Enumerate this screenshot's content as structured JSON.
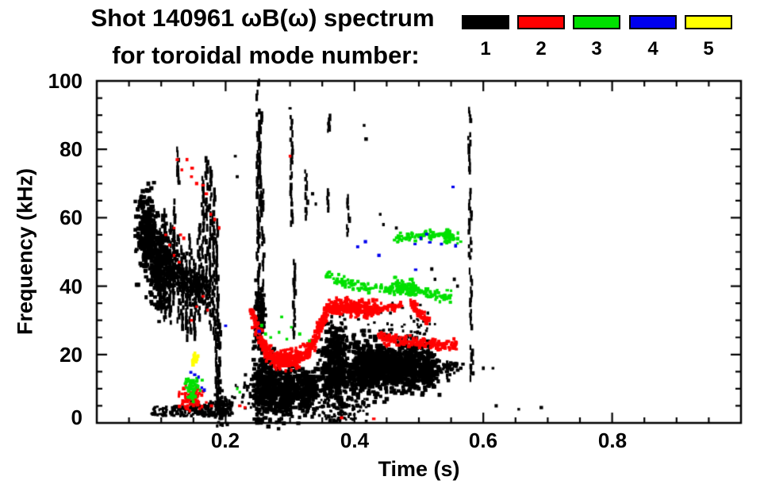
{
  "title": {
    "line1": "Shot 140961 ωB(ω) spectrum",
    "line2": "for toroidal mode number:"
  },
  "legend": {
    "items": [
      {
        "label": "1",
        "color": "#000000"
      },
      {
        "label": "2",
        "color": "#ff0000"
      },
      {
        "label": "3",
        "color": "#00e000"
      },
      {
        "label": "4",
        "color": "#0000ee"
      },
      {
        "label": "5",
        "color": "#ffff00"
      }
    ]
  },
  "chart_data": {
    "type": "scatter",
    "title": "Shot 140961 ωB(ω) spectrum for toroidal mode number: 1 2 3 4 5",
    "xlabel": "Time (s)",
    "ylabel": "Frequency (kHz)",
    "xlim": [
      0,
      1.0
    ],
    "ylim": [
      0,
      100
    ],
    "x_major_ticks": [
      0.2,
      0.4,
      0.6,
      0.8
    ],
    "x_minor_step": 0.05,
    "x_tick_labels": [
      "0.2",
      "0.4",
      "0.6",
      "0.8"
    ],
    "y_major_ticks": [
      0,
      20,
      40,
      60,
      80,
      100
    ],
    "y_minor_step": 5,
    "y_tick_labels": [
      "100",
      "80",
      "60",
      "40",
      "20",
      "0"
    ],
    "grid": false,
    "legend_position": "top-right",
    "modes": [
      {
        "n": 1,
        "color": "#000000"
      },
      {
        "n": 2,
        "color": "#ff0000"
      },
      {
        "n": 3,
        "color": "#00e000"
      },
      {
        "n": 4,
        "color": "#0000ee"
      },
      {
        "n": 5,
        "color": "#ffff00"
      }
    ],
    "clusters": [
      {
        "mode": 1,
        "kind": "blob",
        "t": 0.078,
        "f": 56,
        "st": 0.007,
        "sf": 6,
        "n": 260,
        "s": 4
      },
      {
        "mode": 1,
        "kind": "blob",
        "t": 0.1,
        "f": 45,
        "st": 0.009,
        "sf": 6,
        "n": 240,
        "s": 4
      },
      {
        "mode": 1,
        "kind": "path",
        "pts": [
          [
            0.067,
            64
          ],
          [
            0.078,
            56
          ],
          [
            0.09,
            51
          ],
          [
            0.103,
            47
          ],
          [
            0.118,
            44
          ],
          [
            0.135,
            42
          ],
          [
            0.155,
            40
          ],
          [
            0.175,
            38
          ]
        ],
        "th": 5,
        "n": 420,
        "s": 3
      },
      {
        "mode": 1,
        "kind": "band",
        "t0": 0.085,
        "t1": 0.145,
        "f0": 2,
        "f1": 5,
        "n": 90,
        "s": 2.5
      },
      {
        "mode": 1,
        "kind": "band",
        "t0": 0.145,
        "t1": 0.21,
        "f0": 2,
        "f1": 6.5,
        "n": 130,
        "s": 3
      },
      {
        "mode": 1,
        "kind": "blob",
        "t": 0.193,
        "f": 4,
        "st": 0.005,
        "sf": 2.5,
        "n": 70,
        "s": 3
      },
      {
        "mode": 1,
        "kind": "band",
        "t0": 0.21,
        "t1": 0.245,
        "f0": 4,
        "f1": 12,
        "n": 22,
        "s": 2.5
      },
      {
        "mode": 1,
        "kind": "vline",
        "t": 0.099,
        "f0": 33,
        "f1": 57,
        "w": 1.5
      },
      {
        "mode": 1,
        "kind": "vline",
        "t": 0.106,
        "f0": 30,
        "f1": 62,
        "w": 1.5
      },
      {
        "mode": 1,
        "kind": "vline",
        "t": 0.113,
        "f0": 28,
        "f1": 58,
        "w": 1.5
      },
      {
        "mode": 1,
        "kind": "vline",
        "t": 0.119,
        "f0": 35,
        "f1": 65,
        "w": 1.5
      },
      {
        "mode": 1,
        "kind": "vline",
        "t": 0.126,
        "f0": 30,
        "f1": 55,
        "w": 1.5
      },
      {
        "mode": 1,
        "kind": "vline",
        "t": 0.1265,
        "f0": 70,
        "f1": 80,
        "w": 1.5
      },
      {
        "mode": 1,
        "kind": "vline",
        "t": 0.132,
        "f0": 28,
        "f1": 52,
        "w": 2
      },
      {
        "mode": 1,
        "kind": "vline",
        "t": 0.139,
        "f0": 25,
        "f1": 50,
        "w": 1.5
      },
      {
        "mode": 1,
        "kind": "vline",
        "t": 0.145,
        "f0": 27,
        "f1": 55,
        "w": 1.5
      },
      {
        "mode": 1,
        "kind": "vline",
        "t": 0.152,
        "f0": 25,
        "f1": 48,
        "w": 1.5
      },
      {
        "mode": 1,
        "kind": "vline",
        "t": 0.158,
        "f0": 30,
        "f1": 58,
        "w": 1.5
      },
      {
        "mode": 1,
        "kind": "vline",
        "t": 0.164,
        "f0": 35,
        "f1": 72,
        "w": 1.5
      },
      {
        "mode": 1,
        "kind": "vline",
        "t": 0.17,
        "f0": 32,
        "f1": 78,
        "w": 1.5
      },
      {
        "mode": 1,
        "kind": "vline",
        "t": 0.176,
        "f0": 28,
        "f1": 75,
        "w": 1.5
      },
      {
        "mode": 1,
        "kind": "vline",
        "t": 0.181,
        "f0": 25,
        "f1": 68,
        "w": 1.5
      },
      {
        "mode": 1,
        "kind": "vline",
        "t": 0.186,
        "f0": 5,
        "f1": 60,
        "w": 1.5
      },
      {
        "mode": 1,
        "kind": "vline",
        "t": 0.19,
        "f0": 2,
        "f1": 30,
        "w": 1.5
      },
      {
        "mode": 1,
        "kind": "vline",
        "t": 0.25,
        "f0": 25,
        "f1": 100,
        "w": 2
      },
      {
        "mode": 1,
        "kind": "vline",
        "t": 0.2535,
        "f0": 55,
        "f1": 92,
        "w": 1.5
      },
      {
        "mode": 1,
        "kind": "vline",
        "t": 0.257,
        "f0": 28,
        "f1": 68,
        "w": 1.5
      },
      {
        "mode": 1,
        "kind": "blob",
        "t": 0.252,
        "f": 30,
        "st": 0.004,
        "sf": 5,
        "n": 120,
        "s": 4
      },
      {
        "mode": 1,
        "kind": "blob",
        "t": 0.262,
        "f": 10,
        "st": 0.012,
        "sf": 4.5,
        "n": 330,
        "s": 4
      },
      {
        "mode": 1,
        "kind": "blob",
        "t": 0.296,
        "f": 9,
        "st": 0.012,
        "sf": 3.5,
        "n": 280,
        "s": 4
      },
      {
        "mode": 1,
        "kind": "blob",
        "t": 0.328,
        "f": 9.5,
        "st": 0.008,
        "sf": 3,
        "n": 170,
        "s": 4
      },
      {
        "mode": 1,
        "kind": "vline",
        "t": 0.302,
        "f0": 55,
        "f1": 90,
        "w": 1.5
      },
      {
        "mode": 1,
        "kind": "vline",
        "t": 0.306,
        "f0": 25,
        "f1": 50,
        "w": 1.5
      },
      {
        "mode": 1,
        "kind": "vline",
        "t": 0.325,
        "f0": 60,
        "f1": 74,
        "w": 1.5
      },
      {
        "mode": 1,
        "kind": "vline",
        "t": 0.359,
        "f0": 60,
        "f1": 68,
        "w": 1.5
      },
      {
        "mode": 1,
        "kind": "vline",
        "t": 0.36,
        "f0": 84,
        "f1": 90,
        "w": 1.5
      },
      {
        "mode": 1,
        "kind": "vline",
        "t": 0.39,
        "f0": 55,
        "f1": 67,
        "w": 1.5
      },
      {
        "mode": 1,
        "kind": "blob",
        "t": 0.371,
        "f": 15,
        "st": 0.012,
        "sf": 5.5,
        "n": 420,
        "s": 4
      },
      {
        "mode": 1,
        "kind": "blob",
        "t": 0.371,
        "f": 24,
        "st": 0.008,
        "sf": 3,
        "n": 110,
        "s": 3
      },
      {
        "mode": 1,
        "kind": "blob",
        "t": 0.412,
        "f": 16,
        "st": 0.01,
        "sf": 4.2,
        "n": 300,
        "s": 4
      },
      {
        "mode": 1,
        "kind": "blob",
        "t": 0.438,
        "f": 16,
        "st": 0.011,
        "sf": 3.8,
        "n": 300,
        "s": 4
      },
      {
        "mode": 1,
        "kind": "blob",
        "t": 0.465,
        "f": 16,
        "st": 0.007,
        "sf": 2.8,
        "n": 190,
        "s": 4
      },
      {
        "mode": 1,
        "kind": "blob",
        "t": 0.487,
        "f": 16.5,
        "st": 0.009,
        "sf": 3.2,
        "n": 250,
        "s": 4
      },
      {
        "mode": 1,
        "kind": "blob",
        "t": 0.513,
        "f": 16,
        "st": 0.008,
        "sf": 3,
        "n": 220,
        "s": 4
      },
      {
        "mode": 1,
        "kind": "blob",
        "t": 0.545,
        "f": 16,
        "st": 0.009,
        "sf": 1.5,
        "n": 40,
        "s": 3
      },
      {
        "mode": 1,
        "kind": "band",
        "t0": 0.345,
        "t1": 0.42,
        "f0": 0.5,
        "f1": 7,
        "n": 70,
        "s": 2.5
      },
      {
        "mode": 1,
        "kind": "band",
        "t0": 0.42,
        "t1": 0.53,
        "f0": 25,
        "f1": 30,
        "n": 40,
        "s": 2.5
      },
      {
        "mode": 1,
        "kind": "band",
        "t0": 0.36,
        "t1": 0.52,
        "f0": 30,
        "f1": 36,
        "n": 18,
        "s": 2.5
      },
      {
        "mode": 1,
        "kind": "vline",
        "t": 0.578,
        "f0": 86,
        "f1": 92,
        "w": 1.5
      },
      {
        "mode": 1,
        "kind": "vline",
        "t": 0.5785,
        "f0": 72,
        "f1": 85,
        "w": 2
      },
      {
        "mode": 1,
        "kind": "vline",
        "t": 0.579,
        "f0": 48,
        "f1": 68,
        "w": 2
      },
      {
        "mode": 1,
        "kind": "vline",
        "t": 0.5805,
        "f0": 28,
        "f1": 45,
        "w": 1.5
      },
      {
        "mode": 1,
        "kind": "vline",
        "t": 0.582,
        "f0": 12,
        "f1": 22,
        "w": 2
      },
      {
        "mode": 1,
        "kind": "dots",
        "s": 3,
        "pts": [
          [
            0.215,
            78
          ],
          [
            0.218,
            72
          ],
          [
            0.36,
            87.5
          ],
          [
            0.415,
            87
          ],
          [
            0.418,
            83
          ],
          [
            0.44,
            61
          ],
          [
            0.445,
            58
          ],
          [
            0.465,
            57
          ],
          [
            0.52,
            45
          ],
          [
            0.525,
            42
          ],
          [
            0.555,
            42
          ],
          [
            0.56,
            40
          ],
          [
            0.615,
            16
          ],
          [
            0.62,
            5
          ],
          [
            0.655,
            4
          ],
          [
            0.69,
            4.5
          ],
          [
            0.3,
            92
          ],
          [
            0.335,
            67
          ],
          [
            0.34,
            64
          ],
          [
            0.558,
            16.5
          ],
          [
            0.565,
            16
          ],
          [
            0.6,
            16
          ]
        ]
      },
      {
        "mode": 2,
        "kind": "path",
        "pts": [
          [
            0.24,
            33
          ],
          [
            0.25,
            27
          ],
          [
            0.258,
            23
          ],
          [
            0.268,
            20
          ],
          [
            0.278,
            18.8
          ],
          [
            0.295,
            18.3
          ],
          [
            0.31,
            18.8
          ],
          [
            0.322,
            20
          ],
          [
            0.335,
            23
          ],
          [
            0.347,
            28
          ],
          [
            0.356,
            32
          ]
        ],
        "th": 2.4,
        "n": 520,
        "s": 3
      },
      {
        "mode": 2,
        "kind": "path",
        "pts": [
          [
            0.356,
            33.5
          ],
          [
            0.385,
            34
          ],
          [
            0.415,
            33.5
          ],
          [
            0.437,
            33
          ]
        ],
        "th": 2.2,
        "n": 330,
        "s": 3
      },
      {
        "mode": 2,
        "kind": "path",
        "pts": [
          [
            0.437,
            33.2
          ],
          [
            0.455,
            33.8
          ],
          [
            0.475,
            34.4
          ]
        ],
        "th": 1.2,
        "n": 40,
        "s": 3
      },
      {
        "mode": 2,
        "kind": "path",
        "pts": [
          [
            0.488,
            35
          ],
          [
            0.503,
            31.5
          ],
          [
            0.515,
            29.5
          ]
        ],
        "th": 1.6,
        "n": 70,
        "s": 3
      },
      {
        "mode": 2,
        "kind": "path",
        "pts": [
          [
            0.437,
            25
          ],
          [
            0.465,
            24
          ],
          [
            0.495,
            23.3
          ],
          [
            0.525,
            23
          ],
          [
            0.558,
            22.4
          ]
        ],
        "th": 1.6,
        "n": 170,
        "s": 3
      },
      {
        "mode": 2,
        "kind": "blob",
        "t": 0.145,
        "f": 7.5,
        "st": 0.009,
        "sf": 1.8,
        "n": 70,
        "s": 3
      },
      {
        "mode": 2,
        "kind": "dots",
        "s": 3,
        "pts": [
          [
            0.125,
            77
          ],
          [
            0.132,
            74
          ],
          [
            0.14,
            77
          ],
          [
            0.148,
            74.5
          ],
          [
            0.147,
            72
          ],
          [
            0.155,
            70
          ],
          [
            0.165,
            69.5
          ],
          [
            0.17,
            67
          ],
          [
            0.177,
            61
          ],
          [
            0.183,
            59.5
          ],
          [
            0.19,
            57
          ],
          [
            0.12,
            57
          ],
          [
            0.13,
            55
          ],
          [
            0.135,
            54
          ],
          [
            0.107,
            55
          ],
          [
            0.113,
            52
          ],
          [
            0.12,
            49
          ],
          [
            0.128,
            47
          ],
          [
            0.3,
            78
          ]
        ]
      },
      {
        "mode": 2,
        "kind": "dots",
        "s": 3,
        "pts": [
          [
            0.128,
            9
          ],
          [
            0.133,
            5.5
          ],
          [
            0.17,
            6
          ],
          [
            0.178,
            5
          ],
          [
            0.222,
            5
          ],
          [
            0.23,
            4.5
          ],
          [
            0.38,
            1.5
          ],
          [
            0.43,
            1.2
          ],
          [
            0.155,
            34
          ],
          [
            0.165,
            37
          ],
          [
            0.172,
            33
          ],
          [
            0.147,
            30
          ]
        ]
      },
      {
        "mode": 3,
        "kind": "blob",
        "t": 0.148,
        "f": 10,
        "st": 0.006,
        "sf": 2,
        "n": 55,
        "s": 3
      },
      {
        "mode": 3,
        "kind": "dots",
        "s": 3,
        "pts": [
          [
            0.256,
            28.5
          ],
          [
            0.262,
            26
          ],
          [
            0.27,
            25
          ],
          [
            0.283,
            26.5
          ],
          [
            0.295,
            24.5
          ],
          [
            0.302,
            28
          ],
          [
            0.315,
            26
          ],
          [
            0.287,
            31
          ],
          [
            0.33,
            24
          ],
          [
            0.218,
            10
          ],
          [
            0.222,
            9
          ],
          [
            0.56,
            52.5
          ],
          [
            0.565,
            53
          ]
        ]
      },
      {
        "mode": 3,
        "kind": "path",
        "pts": [
          [
            0.357,
            43
          ],
          [
            0.38,
            41.5
          ],
          [
            0.4,
            40.5
          ],
          [
            0.425,
            39.5
          ],
          [
            0.45,
            39
          ],
          [
            0.475,
            39
          ],
          [
            0.5,
            38.5
          ],
          [
            0.525,
            37.5
          ],
          [
            0.55,
            37
          ]
        ],
        "th": 1.5,
        "n": 170,
        "s": 3
      },
      {
        "mode": 3,
        "kind": "blob",
        "t": 0.472,
        "f": 39.5,
        "st": 0.008,
        "sf": 1.2,
        "n": 45,
        "s": 3
      },
      {
        "mode": 3,
        "kind": "blob",
        "t": 0.49,
        "f": 39,
        "st": 0.006,
        "sf": 1.2,
        "n": 40,
        "s": 3
      },
      {
        "mode": 3,
        "kind": "path",
        "pts": [
          [
            0.465,
            54
          ],
          [
            0.49,
            54.5
          ],
          [
            0.515,
            55
          ],
          [
            0.54,
            55
          ],
          [
            0.562,
            54.3
          ]
        ],
        "th": 1.4,
        "n": 85,
        "s": 3
      },
      {
        "mode": 3,
        "kind": "blob",
        "t": 0.545,
        "f": 55,
        "st": 0.004,
        "sf": 1,
        "n": 35,
        "s": 3.5
      },
      {
        "mode": 4,
        "kind": "dots",
        "s": 3,
        "pts": [
          [
            0.146,
            14.8
          ],
          [
            0.152,
            14.1
          ],
          [
            0.158,
            13.4
          ],
          [
            0.163,
            10.3
          ],
          [
            0.167,
            9.6
          ],
          [
            0.2,
            28.4
          ],
          [
            0.252,
            26.8
          ],
          [
            0.405,
            51.5
          ],
          [
            0.417,
            53
          ],
          [
            0.438,
            49
          ],
          [
            0.495,
            44.8
          ],
          [
            0.494,
            52.3
          ],
          [
            0.503,
            54
          ],
          [
            0.512,
            55.2
          ],
          [
            0.517,
            52.8
          ],
          [
            0.535,
            52.3
          ],
          [
            0.553,
            69
          ],
          [
            0.557,
            51.8
          ]
        ]
      },
      {
        "mode": 5,
        "kind": "blob",
        "t": 0.1513,
        "f": 18.6,
        "st": 0.0025,
        "sf": 0.9,
        "n": 12,
        "s": 3.5
      }
    ]
  }
}
